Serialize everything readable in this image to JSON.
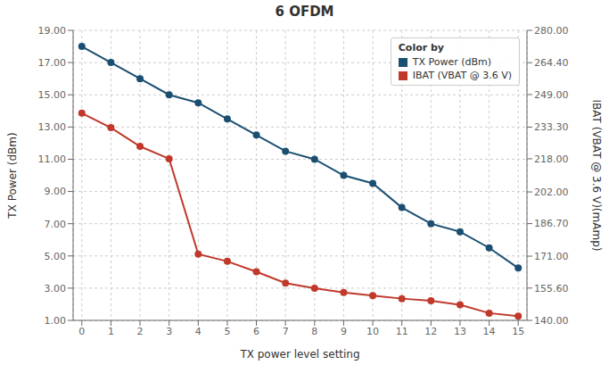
{
  "chart_data": {
    "type": "line",
    "title": "6 OFDM",
    "xlabel": "TX power level setting",
    "ylabel": "TX Power (dBm)",
    "y2label": "IBAT (VBAT @ 3.6 V)(mAmp)",
    "legend_title": "Color by",
    "x": [
      0,
      1,
      2,
      3,
      4,
      5,
      6,
      7,
      8,
      9,
      10,
      11,
      12,
      13,
      14,
      15
    ],
    "series": [
      {
        "name": "TX Power (dBm)",
        "color": "#1b4f72",
        "marker": "circle",
        "values": [
          18.0,
          17.0,
          16.0,
          15.0,
          14.5,
          13.5,
          12.5,
          11.5,
          11.0,
          10.0,
          9.5,
          8.0,
          7.0,
          6.5,
          5.5,
          4.25
        ]
      },
      {
        "name": "IBAT (VBAT @ 3.6 V)",
        "color": "#c0392b",
        "marker": "circle",
        "axis": "y2",
        "values": [
          240.0,
          233.0,
          224.0,
          218.0,
          172.0,
          168.5,
          163.5,
          158.0,
          155.5,
          153.5,
          152.0,
          150.5,
          149.5,
          147.5,
          143.5,
          142.0
        ]
      }
    ],
    "xlim": [
      -0.3,
      15.3
    ],
    "xticks": [
      0,
      1,
      2,
      3,
      4,
      5,
      6,
      7,
      8,
      9,
      10,
      11,
      12,
      13,
      14,
      15
    ],
    "ylim": [
      1.0,
      19.0
    ],
    "yticks": [
      {
        "value": 1.0,
        "label": "1.00"
      },
      {
        "value": 3.0,
        "label": "3.00"
      },
      {
        "value": 5.0,
        "label": "5.00"
      },
      {
        "value": 7.0,
        "label": "7.00"
      },
      {
        "value": 9.0,
        "label": "9.00"
      },
      {
        "value": 11.0,
        "label": "11.00"
      },
      {
        "value": 13.0,
        "label": "13.00"
      },
      {
        "value": 15.0,
        "label": "15.00"
      },
      {
        "value": 17.0,
        "label": "17.00"
      },
      {
        "value": 19.0,
        "label": "19.00"
      }
    ],
    "y2lim": [
      140.0,
      280.0
    ],
    "y2ticks": [
      {
        "value": 140.0,
        "label": "140.00"
      },
      {
        "value": 155.6,
        "label": "155.60"
      },
      {
        "value": 171.0,
        "label": "171.00"
      },
      {
        "value": 186.7,
        "label": "186.70"
      },
      {
        "value": 202.0,
        "label": "202.00"
      },
      {
        "value": 218.0,
        "label": "218.00"
      },
      {
        "value": 233.3,
        "label": "233.30"
      },
      {
        "value": 249.0,
        "label": "249.00"
      },
      {
        "value": 264.4,
        "label": "264.40"
      },
      {
        "value": 280.0,
        "label": "280.00"
      }
    ],
    "grid": true,
    "legend": "upper right"
  }
}
